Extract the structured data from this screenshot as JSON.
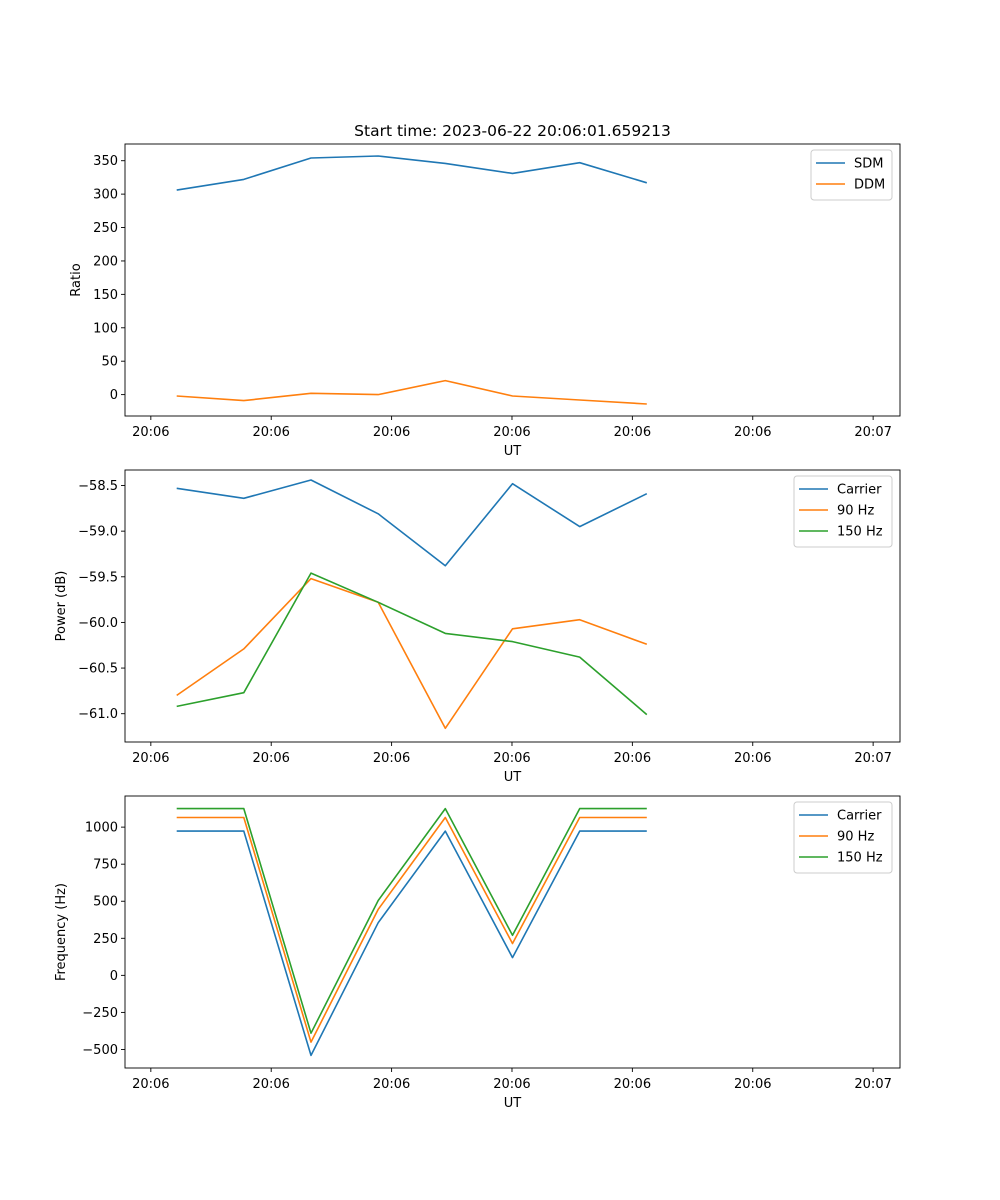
{
  "title": "Start time: 2023-06-22 20:06:01.659213",
  "chart_data": [
    {
      "type": "line",
      "title": "Start time: 2023-06-22 20:06:01.659213",
      "xlabel": "UT",
      "ylabel": "Ratio",
      "x_tick_labels": [
        "20:06",
        "20:06",
        "20:06",
        "20:06",
        "20:06",
        "20:06",
        "20:07"
      ],
      "xlim": [
        0,
        7.5
      ],
      "x": [
        0.5,
        1.15,
        1.8,
        2.45,
        3.1,
        3.75,
        4.4,
        5.05
      ],
      "ylim": [
        -32,
        375
      ],
      "yticks": [
        0,
        50,
        100,
        150,
        200,
        250,
        300,
        350
      ],
      "legend_position": "top-right",
      "grid": false,
      "series": [
        {
          "name": "SDM",
          "color": "#1f77b4",
          "values": [
            306,
            322,
            354,
            357,
            346,
            331,
            347,
            317
          ]
        },
        {
          "name": "DDM",
          "color": "#ff7f0e",
          "values": [
            -2,
            -9,
            2,
            0,
            21,
            -2,
            -8,
            -14
          ]
        }
      ]
    },
    {
      "type": "line",
      "xlabel": "UT",
      "ylabel": "Power (dB)",
      "x_tick_labels": [
        "20:06",
        "20:06",
        "20:06",
        "20:06",
        "20:06",
        "20:06",
        "20:07"
      ],
      "xlim": [
        0,
        7.5
      ],
      "x": [
        0.5,
        1.15,
        1.8,
        2.45,
        3.1,
        3.75,
        4.4,
        5.05
      ],
      "ylim": [
        -61.31,
        -58.33
      ],
      "yticks": [
        -61.0,
        -60.5,
        -60.0,
        -59.5,
        -59.0,
        -58.5
      ],
      "ytick_labels": [
        "−61.0",
        "−60.5",
        "−60.0",
        "−59.5",
        "−59.0",
        "−58.5"
      ],
      "legend_position": "top-right",
      "grid": false,
      "series": [
        {
          "name": "Carrier",
          "color": "#1f77b4",
          "values": [
            -58.53,
            -58.64,
            -58.44,
            -58.81,
            -59.38,
            -58.48,
            -58.95,
            -58.59
          ]
        },
        {
          "name": "90 Hz",
          "color": "#ff7f0e",
          "values": [
            -60.8,
            -60.29,
            -59.52,
            -59.78,
            -61.16,
            -60.07,
            -59.97,
            -60.24
          ]
        },
        {
          "name": "150 Hz",
          "color": "#2ca02c",
          "values": [
            -60.92,
            -60.77,
            -59.46,
            -59.78,
            -60.12,
            -60.21,
            -60.38,
            -61.01
          ]
        }
      ]
    },
    {
      "type": "line",
      "xlabel": "UT",
      "ylabel": "Frequency (Hz)",
      "x_tick_labels": [
        "20:06",
        "20:06",
        "20:06",
        "20:06",
        "20:06",
        "20:06",
        "20:07"
      ],
      "xlim": [
        0,
        7.5
      ],
      "x": [
        0.5,
        1.15,
        1.8,
        2.45,
        3.1,
        3.75,
        4.4,
        5.05
      ],
      "ylim": [
        -625,
        1210
      ],
      "yticks": [
        -500,
        -250,
        0,
        250,
        500,
        750,
        1000
      ],
      "ytick_labels": [
        "−500",
        "−250",
        "0",
        "250",
        "500",
        "750",
        "1000"
      ],
      "legend_position": "top-right",
      "grid": false,
      "series": [
        {
          "name": "Carrier",
          "color": "#1f77b4",
          "values": [
            973,
            973,
            -540,
            355,
            973,
            120,
            973,
            973
          ]
        },
        {
          "name": "90 Hz",
          "color": "#ff7f0e",
          "values": [
            1065,
            1065,
            -450,
            445,
            1065,
            215,
            1065,
            1065
          ]
        },
        {
          "name": "150 Hz",
          "color": "#2ca02c",
          "values": [
            1125,
            1125,
            -390,
            505,
            1125,
            270,
            1125,
            1125
          ]
        }
      ]
    }
  ]
}
